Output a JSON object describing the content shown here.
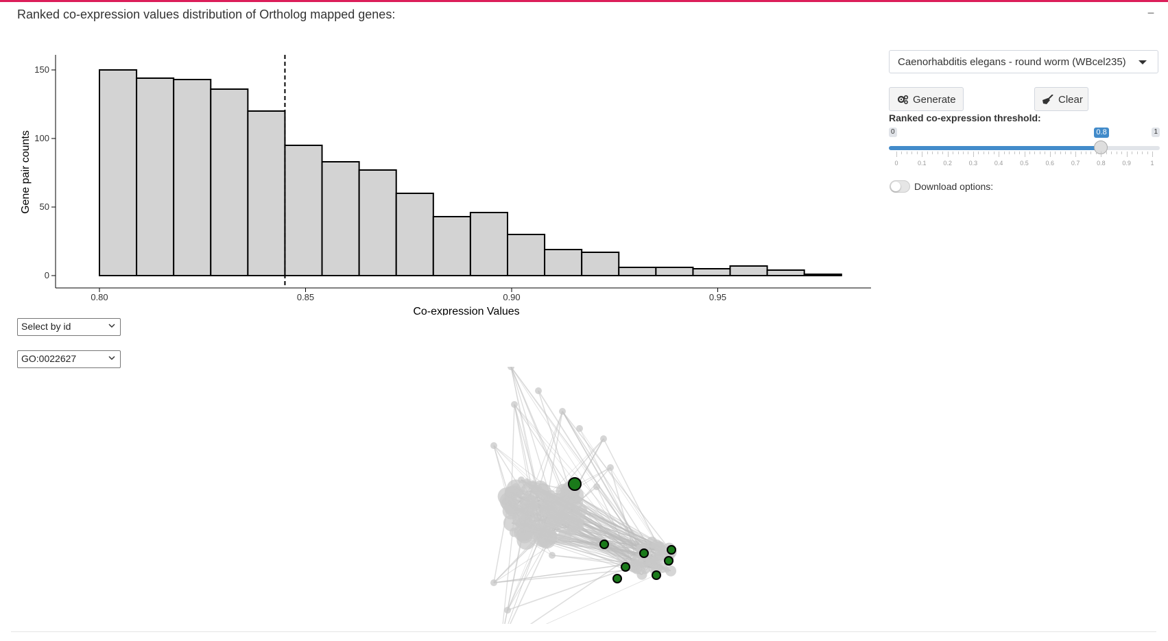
{
  "panel": {
    "title": "Ranked co-expression values distribution of Ortholog mapped genes:",
    "collapse_symbol": "−",
    "accent_color": "#dc1e5a"
  },
  "chart_data": {
    "type": "bar",
    "subtype": "histogram",
    "xlabel": "Co-expression Values",
    "ylabel": "Gene pair counts",
    "bin_width": 0.009,
    "bins_start": [
      0.8,
      0.809,
      0.818,
      0.827,
      0.836,
      0.845,
      0.854,
      0.863,
      0.872,
      0.881,
      0.89,
      0.899,
      0.908,
      0.917,
      0.926,
      0.935,
      0.944,
      0.953,
      0.962,
      0.971
    ],
    "values": [
      150,
      144,
      143,
      136,
      120,
      95,
      83,
      77,
      60,
      43,
      46,
      30,
      19,
      17,
      6,
      6,
      5,
      7,
      4,
      1
    ],
    "xlim": [
      0.79,
      0.99
    ],
    "ylim": [
      0,
      155
    ],
    "x_ticks": [
      "0.80",
      "0.85",
      "0.90",
      "0.95"
    ],
    "y_ticks": [
      "0",
      "50",
      "100",
      "150"
    ],
    "threshold_line": 0.845,
    "bar_fill": "#d3d3d3",
    "bar_stroke": "#000000",
    "grid": false
  },
  "filters": {
    "select_by": "Select by id",
    "go_term": "GO:0022627"
  },
  "controls": {
    "species": "Caenorhabditis elegans - round worm (WBcel235)",
    "generate_label": "Generate",
    "clear_label": "Clear",
    "threshold_label": "Ranked co-expression threshold:",
    "threshold": {
      "min": "0",
      "max": "1",
      "value": "0.8",
      "value_fraction": 0.8,
      "tick_labels": [
        "0",
        "0.1",
        "0.2",
        "0.3",
        "0.4",
        "0.5",
        "0.6",
        "0.7",
        "0.8",
        "0.9",
        "1"
      ]
    },
    "download_label": "Download options:",
    "accent_color": "#428bca"
  },
  "network": {
    "highlight_color": "#1a7a1a",
    "node_color": "#c8c8c8"
  }
}
